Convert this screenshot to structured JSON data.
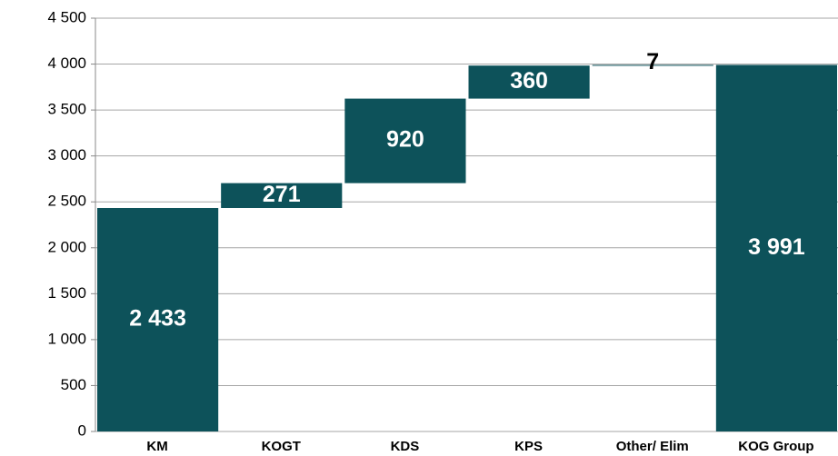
{
  "chart_data": {
    "type": "waterfall",
    "categories": [
      "KM",
      "KOGT",
      "KDS",
      "KPS",
      "Other/ Elim",
      "KOG Group"
    ],
    "values": [
      2433,
      271,
      920,
      360,
      7,
      3991
    ],
    "value_labels": [
      "2 433",
      "271",
      "920",
      "360",
      "7",
      "3 991"
    ],
    "totals": [
      false,
      false,
      false,
      false,
      false,
      true
    ],
    "color": "#0d525a",
    "ylim": [
      0,
      4500
    ],
    "yticks": [
      0,
      500,
      {
        "value": 1000,
        "label": "1 000"
      },
      {
        "value": 1500,
        "label": "1 500"
      },
      {
        "value": 2000,
        "label": "2 000"
      },
      {
        "value": 2500,
        "label": "2 500"
      },
      {
        "value": 3000,
        "label": "3 000"
      },
      {
        "value": 3500,
        "label": "3 500"
      },
      {
        "value": 4000,
        "label": "4 000"
      },
      {
        "value": 4500,
        "label": "4 500"
      }
    ],
    "grid": true
  }
}
